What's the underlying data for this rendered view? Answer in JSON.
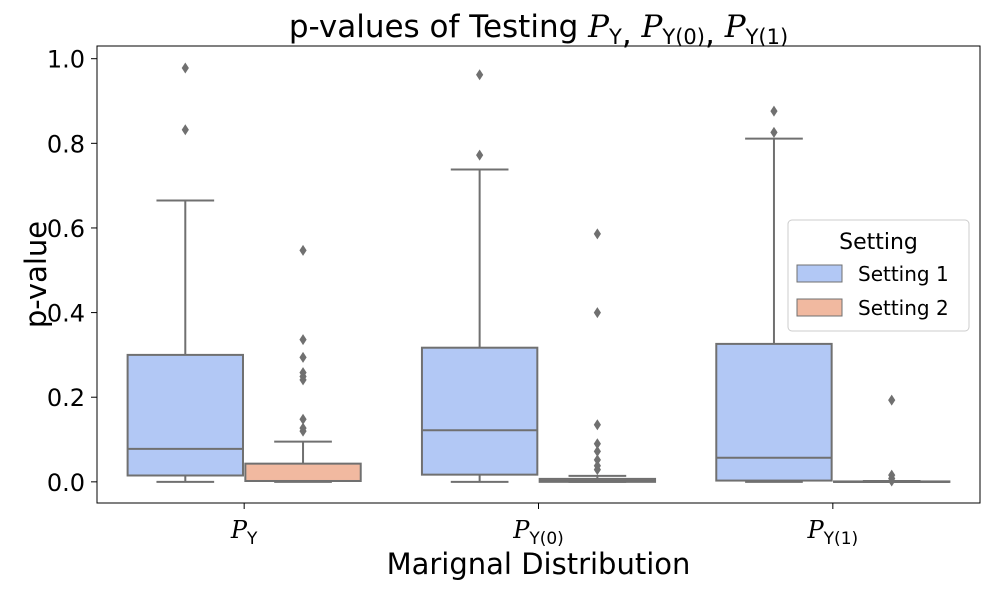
{
  "chart_data": {
    "type": "box",
    "title": {
      "prefix": "p-values of Testing ",
      "parts": [
        {
          "base": "P",
          "sub": "Y"
        },
        {
          "base": "P",
          "sub": "Y(0)"
        },
        {
          "base": "P",
          "sub": "Y(1)"
        }
      ],
      "separator": ", "
    },
    "xlabel": "Marignal Distribution",
    "ylabel": "p-value",
    "ylim": [
      -0.05,
      1.03
    ],
    "yticks": [
      0.0,
      0.2,
      0.4,
      0.6,
      0.8,
      1.0
    ],
    "ytick_labels": [
      "0.0",
      "0.2",
      "0.4",
      "0.6",
      "0.8",
      "1.0"
    ],
    "categories": [
      {
        "base": "P",
        "sub": "Y"
      },
      {
        "base": "P",
        "sub": "Y(0)"
      },
      {
        "base": "P",
        "sub": "Y(1)"
      }
    ],
    "legend": {
      "title": "Setting",
      "position": "center-right",
      "entries": [
        {
          "label": "Setting 1",
          "color": "#b2c8f5"
        },
        {
          "label": "Setting 2",
          "color": "#f1b9a0"
        }
      ]
    },
    "series": [
      {
        "name": "Setting 1",
        "color": "#b2c8f5",
        "boxes": [
          {
            "whislo": 0.0,
            "q1": 0.015,
            "med": 0.078,
            "q3": 0.3,
            "whishi": 0.665,
            "fliers": [
              0.832,
              0.978
            ]
          },
          {
            "whislo": 0.0,
            "q1": 0.017,
            "med": 0.122,
            "q3": 0.317,
            "whishi": 0.738,
            "fliers": [
              0.772,
              0.962
            ]
          },
          {
            "whislo": 0.0,
            "q1": 0.003,
            "med": 0.057,
            "q3": 0.326,
            "whishi": 0.811,
            "fliers": [
              0.826,
              0.876
            ]
          }
        ]
      },
      {
        "name": "Setting 2",
        "color": "#f1b9a0",
        "boxes": [
          {
            "whislo": 0.0,
            "q1": 0.002,
            "med": 0.002,
            "q3": 0.043,
            "whishi": 0.095,
            "fliers": [
              0.12,
              0.127,
              0.148,
              0.241,
              0.249,
              0.258,
              0.294,
              0.336,
              0.547
            ]
          },
          {
            "whislo": 0.0,
            "q1": 0.0,
            "med": 0.003,
            "q3": 0.007,
            "whishi": 0.014,
            "fliers": [
              0.029,
              0.038,
              0.052,
              0.072,
              0.09,
              0.135,
              0.4,
              0.586
            ]
          },
          {
            "whislo": 0.0,
            "q1": 0.0,
            "med": 0.0,
            "q3": 0.001,
            "whishi": 0.002,
            "fliers": [
              0.002,
              0.008,
              0.016,
              0.193
            ]
          }
        ]
      }
    ],
    "style": {
      "line_color": "#707070",
      "flier_color": "#707070"
    }
  }
}
